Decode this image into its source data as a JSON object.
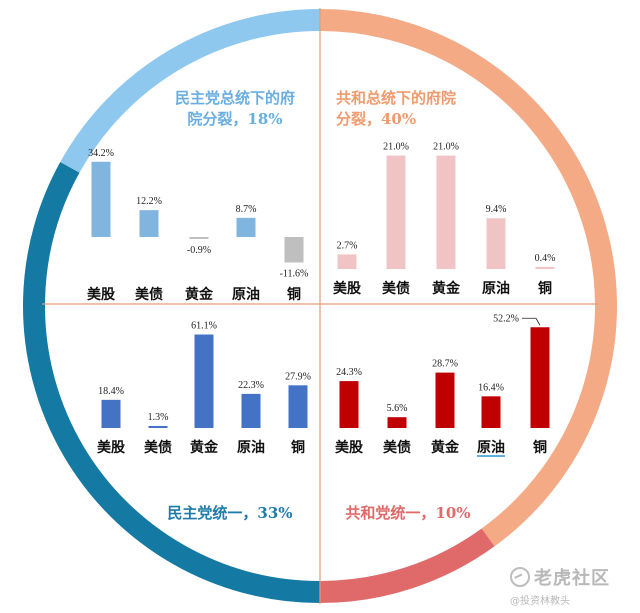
{
  "colors": {
    "ring_top_left": "#8ec8ee",
    "ring_left": "#1479a3",
    "ring_right": "#f4aa85",
    "ring_bottom_right": "#e06a6a",
    "divider": "#e39b75",
    "panel_top_left": "#80b5df",
    "panel_top_left_negative": "#bfbfbf",
    "panel_top_right": "#f0c4c4",
    "panel_bottom_left": "#4472c4",
    "panel_bottom_right": "#c00000",
    "title_top_left": "#6aaee0",
    "title_top_right": "#f09b6e",
    "title_bottom_left": "#1f7ba8",
    "title_bottom_right": "#e06a6a"
  },
  "titles": {
    "top_left": [
      "民主党总统下的府",
      "院分裂，18%"
    ],
    "top_right": [
      "共和总统下的府院",
      "分裂，40%"
    ],
    "bottom_left": "民主党统一，33%",
    "bottom_right": "共和党统一，10%"
  },
  "chart_data": [
    {
      "type": "bar",
      "panel": "top-left",
      "title": "民主党总统下的府院分裂，18%",
      "categories": [
        "美股",
        "美债",
        "黄金",
        "原油",
        "铜"
      ],
      "values": [
        34.2,
        12.2,
        -0.9,
        8.7,
        -11.6
      ],
      "labels": [
        "34.2%",
        "12.2%",
        "-0.9%",
        "8.7%",
        "-11.6%"
      ]
    },
    {
      "type": "bar",
      "panel": "top-right",
      "title": "共和总统下的府院分裂，40%",
      "categories": [
        "美股",
        "美债",
        "黄金",
        "原油",
        "铜"
      ],
      "values": [
        2.7,
        21.0,
        21.0,
        9.4,
        0.4
      ],
      "labels": [
        "2.7%",
        "21.0%",
        "21.0%",
        "9.4%",
        "0.4%"
      ]
    },
    {
      "type": "bar",
      "panel": "bottom-left",
      "title": "民主党统一，33%",
      "categories": [
        "美股",
        "美债",
        "黄金",
        "原油",
        "铜"
      ],
      "values": [
        18.4,
        1.3,
        61.1,
        22.3,
        27.9
      ],
      "labels": [
        "18.4%",
        "1.3%",
        "61.1%",
        "22.3%",
        "27.9%"
      ]
    },
    {
      "type": "bar",
      "panel": "bottom-right",
      "title": "共和党统一，10%",
      "categories": [
        "美股",
        "美债",
        "黄金",
        "原油",
        "铜"
      ],
      "values": [
        24.3,
        5.6,
        28.7,
        16.4,
        52.2
      ],
      "labels": [
        "24.3%",
        "5.6%",
        "28.7%",
        "16.4%",
        "52.2%"
      ]
    }
  ],
  "watermark": {
    "line1": "老虎社区",
    "line2": "@投资林教头"
  }
}
